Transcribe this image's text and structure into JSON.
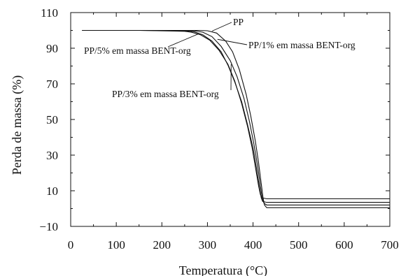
{
  "chart_data": {
    "type": "line",
    "xlabel": "Temperatura (°C)",
    "ylabel": "Perda de massa (%)",
    "xlim": [
      0,
      700
    ],
    "ylim": [
      -10,
      110
    ],
    "x_ticks": [
      "0",
      "100",
      "200",
      "300",
      "400",
      "500",
      "600",
      "700"
    ],
    "y_ticks": [
      "−10",
      "10",
      "30",
      "50",
      "70",
      "90",
      "110"
    ],
    "grid": false,
    "series": [
      {
        "name": "PP",
        "points": [
          [
            25,
            100
          ],
          [
            150,
            100
          ],
          [
            250,
            100
          ],
          [
            280,
            100
          ],
          [
            300,
            99.8
          ],
          [
            320,
            98.5
          ],
          [
            340,
            94
          ],
          [
            355,
            88
          ],
          [
            370,
            78
          ],
          [
            385,
            64
          ],
          [
            395,
            52
          ],
          [
            405,
            38
          ],
          [
            412,
            26
          ],
          [
            418,
            14
          ],
          [
            422,
            6
          ],
          [
            425,
            2
          ],
          [
            430,
            0.5
          ],
          [
            700,
            0.5
          ]
        ]
      },
      {
        "name": "PP/1% em massa BENT-org",
        "points": [
          [
            25,
            100
          ],
          [
            150,
            100
          ],
          [
            250,
            100
          ],
          [
            270,
            99.8
          ],
          [
            290,
            99
          ],
          [
            310,
            96.5
          ],
          [
            330,
            91
          ],
          [
            350,
            83
          ],
          [
            365,
            74
          ],
          [
            380,
            62
          ],
          [
            392,
            49
          ],
          [
            402,
            36
          ],
          [
            410,
            24
          ],
          [
            416,
            13
          ],
          [
            420,
            6
          ],
          [
            424,
            3
          ],
          [
            430,
            2
          ],
          [
            700,
            2
          ]
        ]
      },
      {
        "name": "PP/3% em massa BENT-org",
        "points": [
          [
            25,
            100
          ],
          [
            150,
            100
          ],
          [
            250,
            99.8
          ],
          [
            270,
            99.3
          ],
          [
            290,
            97.5
          ],
          [
            310,
            94
          ],
          [
            330,
            88
          ],
          [
            345,
            80.5
          ],
          [
            360,
            71
          ],
          [
            375,
            60
          ],
          [
            388,
            47
          ],
          [
            400,
            34
          ],
          [
            408,
            22
          ],
          [
            414,
            12
          ],
          [
            418,
            6
          ],
          [
            421,
            4
          ],
          [
            430,
            3.5
          ],
          [
            700,
            3.5
          ]
        ]
      },
      {
        "name": "PP/5% em massa BENT-org",
        "points": [
          [
            25,
            100
          ],
          [
            150,
            100
          ],
          [
            250,
            99.5
          ],
          [
            265,
            99
          ],
          [
            285,
            97.5
          ],
          [
            305,
            94.5
          ],
          [
            325,
            89
          ],
          [
            345,
            81
          ],
          [
            360,
            71.5
          ],
          [
            375,
            59
          ],
          [
            388,
            46
          ],
          [
            398,
            34
          ],
          [
            406,
            22
          ],
          [
            412,
            13
          ],
          [
            416,
            8
          ],
          [
            420,
            6
          ],
          [
            430,
            5.5
          ],
          [
            700,
            5.5
          ]
        ]
      }
    ],
    "annotations": [
      {
        "text": "PP",
        "series": "PP"
      },
      {
        "text": "PP/1% em massa BENT-org",
        "series": "PP/1% em massa BENT-org"
      },
      {
        "text": "PP/5% em massa BENT-org",
        "series": "PP/5% em massa BENT-org"
      },
      {
        "text": "PP/3% em massa BENT-org",
        "series": "PP/3% em massa BENT-org"
      }
    ]
  }
}
